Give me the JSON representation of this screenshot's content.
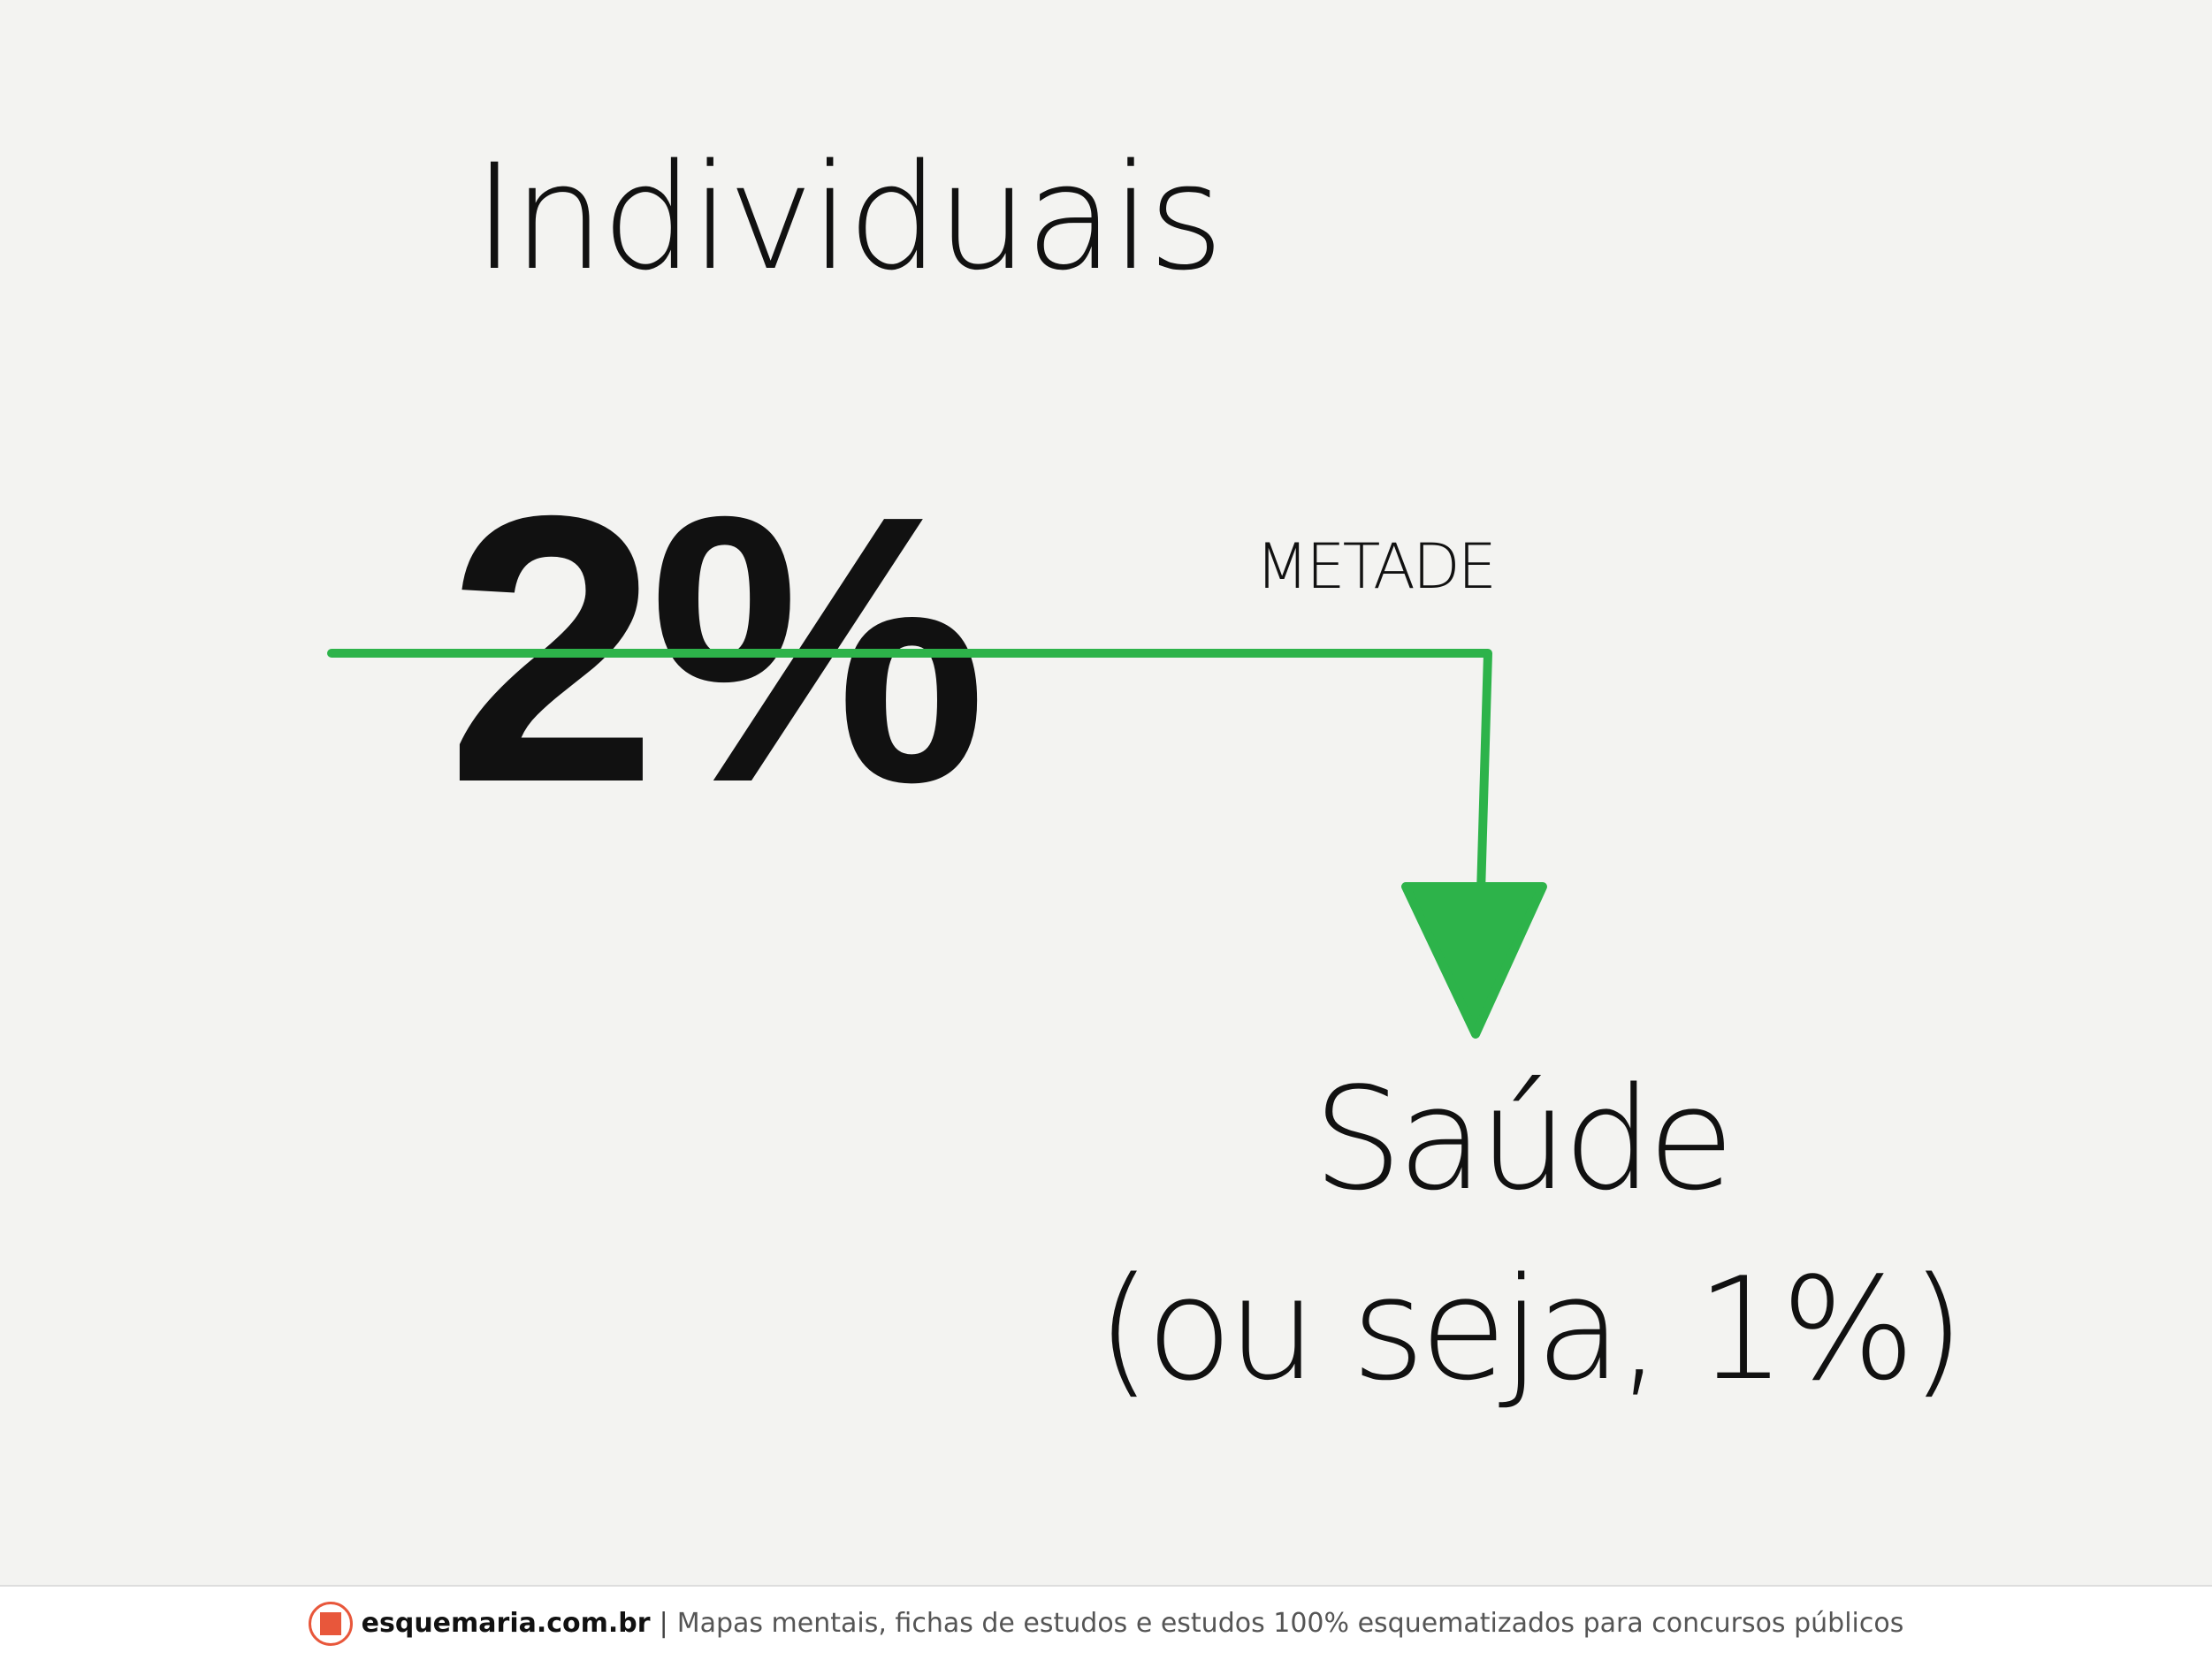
{
  "heading": "Individuais",
  "percentage": "2%",
  "arrow_label": "METADE",
  "target": "Saúde",
  "note": "(ou seja, 1%)",
  "colors": {
    "arrow": "#2db34a",
    "text": "#111111",
    "logo": "#e8573b"
  },
  "footer": {
    "brand": "esquemaria.com.br",
    "separator": "|",
    "tagline": "Mapas mentais, fichas de estudos e estudos 100% esquematizados para concursos públicos",
    "logo_icon": "esquemaria-logo"
  }
}
